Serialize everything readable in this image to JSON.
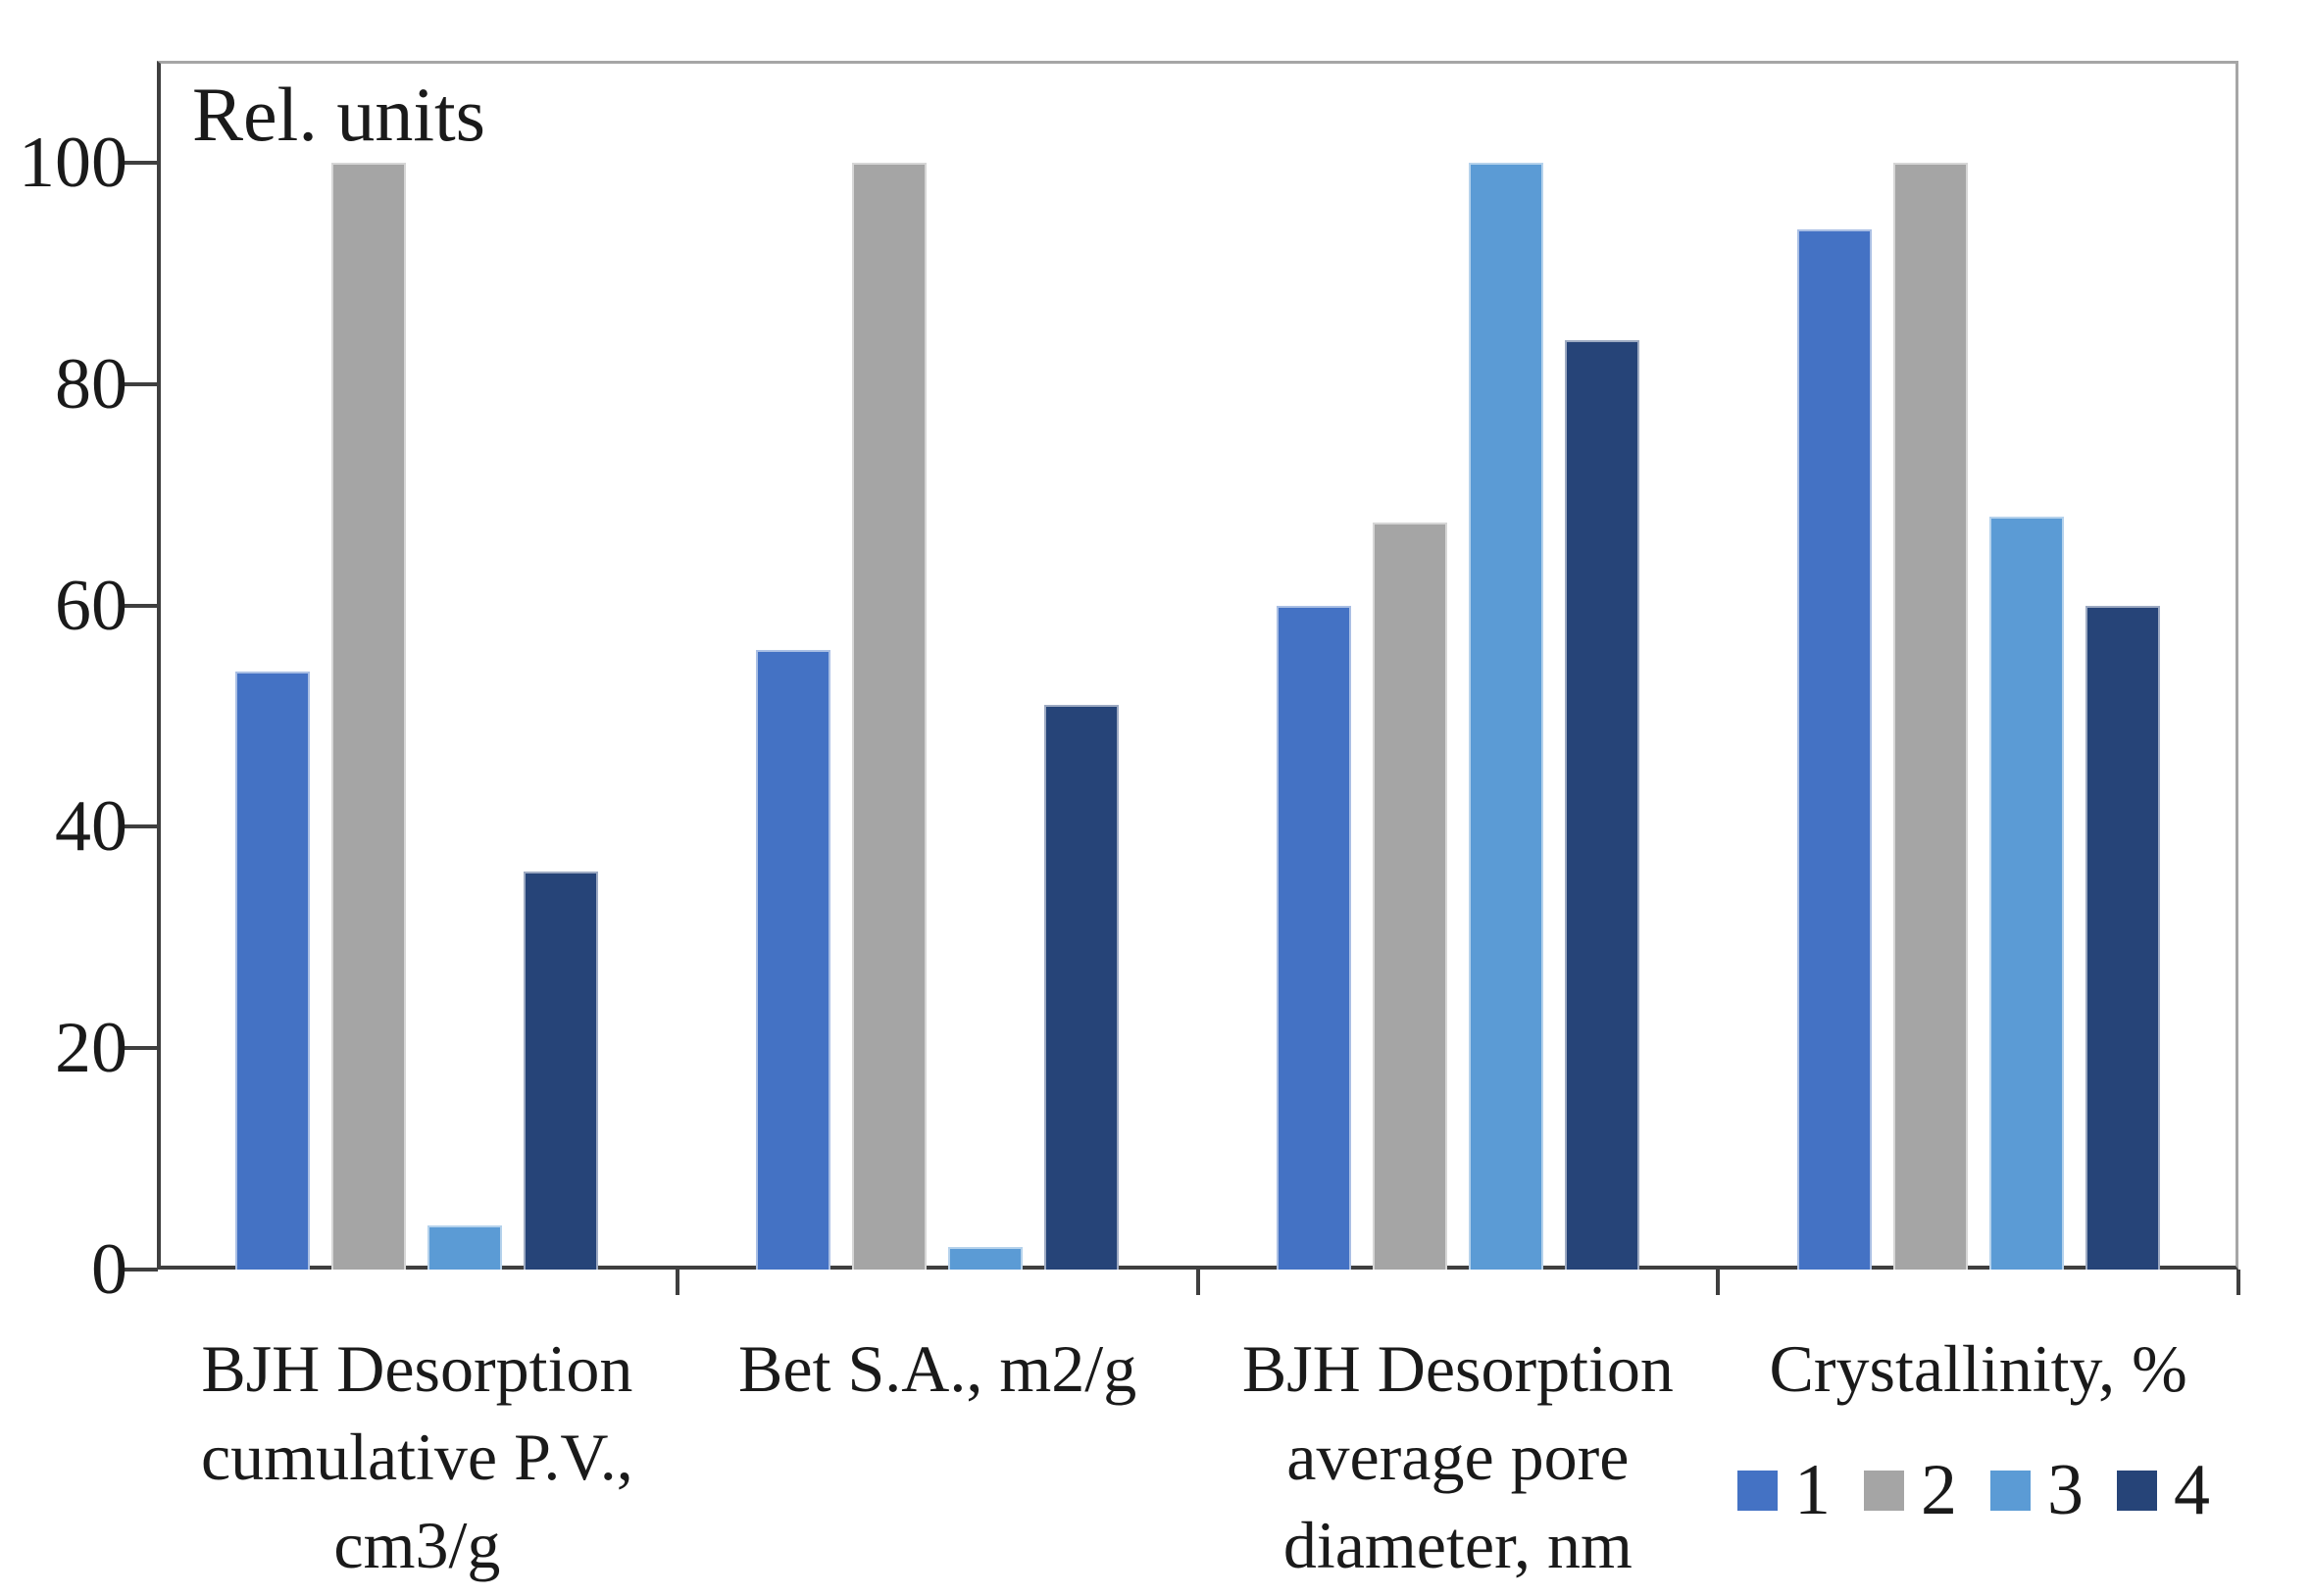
{
  "chart_data": {
    "type": "bar",
    "title": "Rel. units",
    "categories": [
      [
        "BJH Desorption",
        "cumulative P.V.,",
        "cm3/g"
      ],
      [
        "Bet S.A., m2/g"
      ],
      [
        "BJH Desorption",
        "average pore",
        "diameter, nm"
      ],
      [
        "Crystallinity, %"
      ]
    ],
    "series": [
      {
        "name": "1",
        "color": "#4472C4",
        "values": [
          54,
          56,
          60,
          94
        ]
      },
      {
        "name": "2",
        "color": "#A5A5A5",
        "values": [
          100,
          100,
          67.5,
          100
        ]
      },
      {
        "name": "3",
        "color": "#5B9BD5",
        "values": [
          4,
          2,
          100,
          68
        ]
      },
      {
        "name": "4",
        "color": "#264478",
        "values": [
          36,
          51,
          84,
          60
        ]
      }
    ],
    "yticks": [
      0,
      20,
      40,
      60,
      80,
      100
    ],
    "ylim": [
      0,
      109
    ],
    "xlabel": "",
    "ylabel": "",
    "grid": false,
    "legend_position": "bottom-right",
    "axis_color": "#3f3f3f",
    "border_color": "#a6a6a6",
    "text_color": "#1a1a1a"
  }
}
